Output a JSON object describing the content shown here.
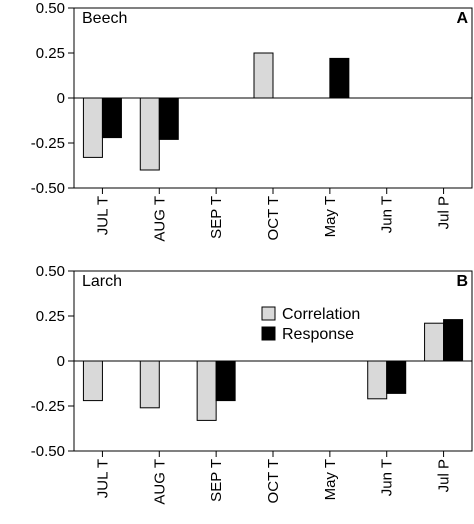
{
  "chart_data": [
    {
      "type": "bar",
      "title": "Beech",
      "panel_label": "A",
      "categories": [
        "JUL T",
        "AUG T",
        "SEP T",
        "OCT T",
        "May T",
        "Jun T",
        "Jul P"
      ],
      "series": [
        {
          "name": "Correlation",
          "color": "#d9d9d9",
          "values": [
            -0.33,
            -0.4,
            0,
            0.25,
            0,
            0,
            0
          ]
        },
        {
          "name": "Response",
          "color": "#000000",
          "values": [
            -0.22,
            -0.23,
            0,
            0,
            0.22,
            0,
            0
          ]
        }
      ],
      "ylim": [
        -0.5,
        0.5
      ],
      "yticks": [
        "0.50",
        "0.25",
        "0",
        "-0.25",
        "-0.50"
      ],
      "ytick_values": [
        0.5,
        0.25,
        0,
        -0.25,
        -0.5
      ],
      "legend": false
    },
    {
      "type": "bar",
      "title": "Larch",
      "panel_label": "B",
      "categories": [
        "JUL T",
        "AUG T",
        "SEP T",
        "OCT T",
        "May T",
        "Jun T",
        "Jul P"
      ],
      "series": [
        {
          "name": "Correlation",
          "color": "#d9d9d9",
          "values": [
            -0.22,
            -0.26,
            -0.33,
            0,
            0,
            -0.21,
            0.21
          ]
        },
        {
          "name": "Response",
          "color": "#000000",
          "values": [
            0,
            0,
            -0.22,
            0,
            0,
            -0.18,
            0.23
          ]
        }
      ],
      "ylim": [
        -0.5,
        0.5
      ],
      "yticks": [
        "0.50",
        "0.25",
        "0",
        "-0.25",
        "-0.50"
      ],
      "ytick_values": [
        0.5,
        0.25,
        0,
        -0.25,
        -0.5
      ],
      "legend": true,
      "legend_position": "top-center"
    }
  ]
}
